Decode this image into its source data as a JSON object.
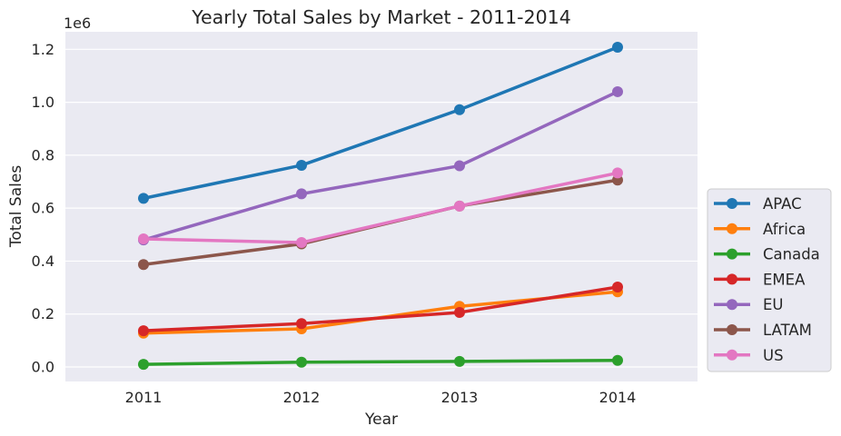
{
  "chart_data": {
    "type": "line",
    "title": "Yearly Total Sales by Market - 2011-2014",
    "xlabel": "Year",
    "ylabel": "Total Sales",
    "y_offset_label": "1e6",
    "categories": [
      "2011",
      "2012",
      "2013",
      "2014"
    ],
    "y_ticks": [
      "0.0",
      "0.2",
      "0.4",
      "0.6",
      "0.8",
      "1.0",
      "1.2"
    ],
    "y_tick_values": [
      0.0,
      0.2,
      0.4,
      0.6,
      0.8,
      1.0,
      1.2
    ],
    "ylim": [
      -0.06,
      1.26
    ],
    "grid": true,
    "legend_position": "right",
    "series": [
      {
        "name": "APAC",
        "color": "#1f77b4",
        "values": [
          0.637,
          0.762,
          0.972,
          1.208
        ]
      },
      {
        "name": "Africa",
        "color": "#ff7f0e",
        "values": [
          0.128,
          0.144,
          0.229,
          0.284
        ]
      },
      {
        "name": "Canada",
        "color": "#2ca02c",
        "values": [
          0.01,
          0.018,
          0.021,
          0.025
        ]
      },
      {
        "name": "EMEA",
        "color": "#d62728",
        "values": [
          0.137,
          0.164,
          0.206,
          0.302
        ]
      },
      {
        "name": "EU",
        "color": "#9467bd",
        "values": [
          0.48,
          0.654,
          0.76,
          1.04
        ]
      },
      {
        "name": "LATAM",
        "color": "#8c564b",
        "values": [
          0.387,
          0.465,
          0.608,
          0.706
        ]
      },
      {
        "name": "US",
        "color": "#e377c2",
        "values": [
          0.484,
          0.47,
          0.608,
          0.733
        ]
      }
    ]
  }
}
